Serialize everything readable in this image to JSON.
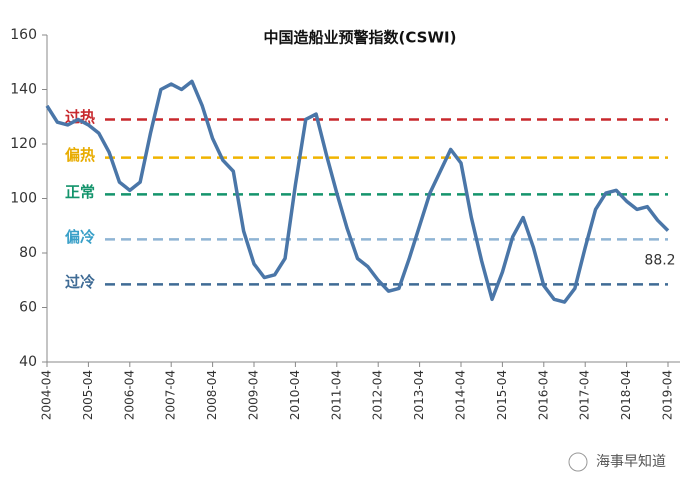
{
  "chart_data": {
    "type": "line",
    "title": "中国造船业预警指数(CSWI)",
    "x": [
      "2004-04",
      "2004-07",
      "2004-10",
      "2005-01",
      "2005-04",
      "2005-07",
      "2005-10",
      "2006-01",
      "2006-04",
      "2006-07",
      "2006-10",
      "2007-01",
      "2007-04",
      "2007-07",
      "2007-10",
      "2008-01",
      "2008-04",
      "2008-07",
      "2008-10",
      "2009-01",
      "2009-04",
      "2009-07",
      "2009-10",
      "2010-01",
      "2010-04",
      "2010-07",
      "2010-10",
      "2011-01",
      "2011-04",
      "2011-07",
      "2011-10",
      "2012-01",
      "2012-04",
      "2012-07",
      "2012-10",
      "2013-01",
      "2013-04",
      "2013-07",
      "2013-10",
      "2014-01",
      "2014-04",
      "2014-07",
      "2014-10",
      "2015-01",
      "2015-04",
      "2015-07",
      "2015-10",
      "2016-01",
      "2016-04",
      "2016-07",
      "2016-10",
      "2017-01",
      "2017-04",
      "2017-07",
      "2017-10",
      "2018-01",
      "2018-04",
      "2018-07",
      "2018-10",
      "2019-01",
      "2019-04"
    ],
    "series": [
      {
        "name": "CSWI",
        "color": "#4a76a8",
        "values": [
          134,
          128,
          127,
          129,
          127,
          124,
          117,
          106,
          103,
          106,
          124,
          140,
          142,
          140,
          143,
          134,
          122,
          114,
          110,
          88,
          76,
          71,
          72,
          78,
          105,
          129,
          131,
          116,
          102,
          89,
          78,
          75,
          70,
          66,
          67,
          78,
          90,
          102,
          110,
          118,
          113,
          93,
          77,
          63,
          73,
          86,
          93,
          82,
          68,
          63,
          62,
          67,
          82,
          96,
          102,
          103,
          99,
          96,
          97,
          92,
          88.2
        ]
      }
    ],
    "xticks": [
      "2004-04",
      "2005-04",
      "2006-04",
      "2007-04",
      "2008-04",
      "2009-04",
      "2010-04",
      "2011-04",
      "2012-04",
      "2013-04",
      "2014-04",
      "2015-04",
      "2016-04",
      "2017-04",
      "2018-04",
      "2019-04"
    ],
    "ylim": [
      40,
      160
    ],
    "yticks": [
      40,
      60,
      80,
      100,
      120,
      140,
      160
    ],
    "reference_lines": [
      {
        "label": "过热",
        "value": 129,
        "color": "#c8282d"
      },
      {
        "label": "偏热",
        "value": 115,
        "color": "#f0b400"
      },
      {
        "label": "正常",
        "value": 101.5,
        "color": "#14946c"
      },
      {
        "label": "偏冷",
        "value": 85,
        "color": "#8fb4d4"
      },
      {
        "label": "过冷",
        "value": 68.5,
        "color": "#3f6b95"
      }
    ],
    "label_colors": [
      "#c8282d",
      "#e8ac00",
      "#14946c",
      "#3aa0c8",
      "#3f6b95"
    ],
    "annotations": [
      {
        "text": "88.2"
      }
    ],
    "watermark": "海事早知道"
  }
}
